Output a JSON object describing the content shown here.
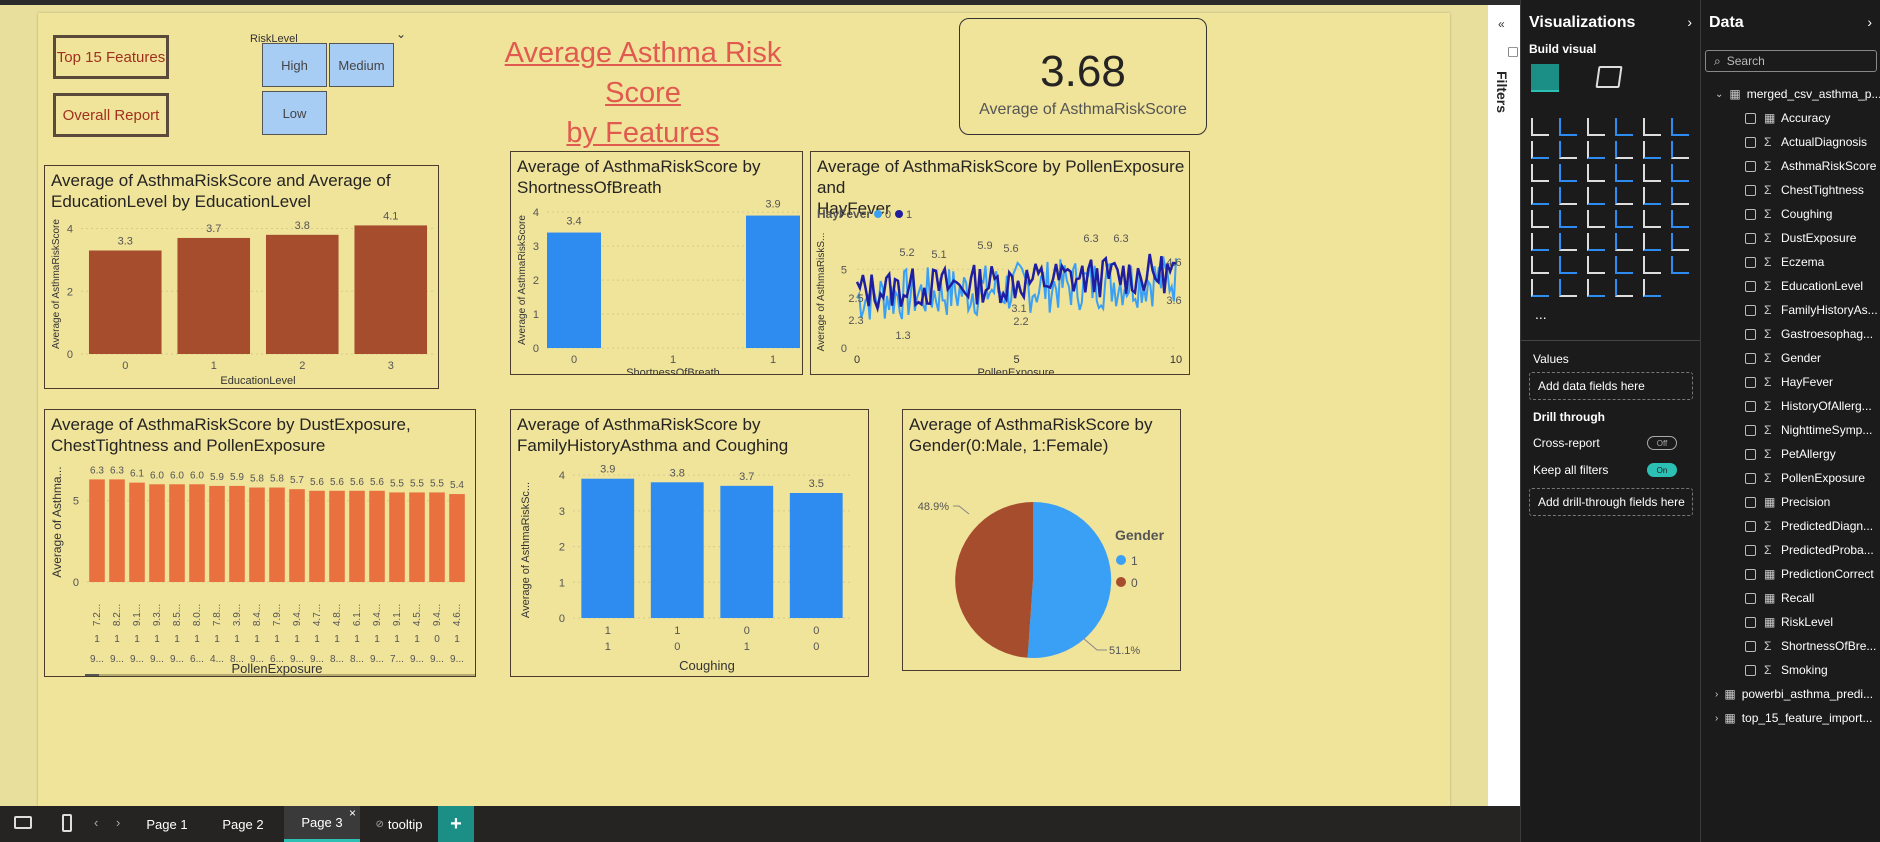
{
  "buttons": {
    "top15": "Top 15 Features",
    "overall": "Overall Report"
  },
  "slicer": {
    "title": "RiskLevel",
    "options": [
      "High",
      "Medium",
      "Low"
    ]
  },
  "page_title": {
    "line1": "Average Asthma Risk Score",
    "line2": "by Features"
  },
  "kpi": {
    "value": "3.68",
    "label": "Average of AsthmaRiskScore"
  },
  "colors": {
    "brown": "#a64d2e",
    "blue": "#2e8cf0",
    "orange": "#e8713f",
    "lightblue": "#3aa0f5",
    "darkblue": "#1f1ea0",
    "canvas": "#f0e39a"
  },
  "chart_data": [
    {
      "id": "edu",
      "type": "bar",
      "title": "Average of AsthmaRiskScore and Average of\nEducationLevel by EducationLevel",
      "xlabel": "EducationLevel",
      "ylabel": "Average of AsthmaRiskScore",
      "categories": [
        "0",
        "1",
        "2",
        "3"
      ],
      "values": [
        3.3,
        3.7,
        3.8,
        4.1
      ],
      "yticks": [
        "0",
        "2",
        "4"
      ],
      "ylim": [
        0,
        4.4
      ]
    },
    {
      "id": "sob",
      "type": "bar",
      "title": "Average of AsthmaRiskScore by\nShortnessOfBreath",
      "xlabel": "ShortnessOfBreath",
      "ylabel": "Average of AsthmaRiskScore",
      "x": [
        0,
        1
      ],
      "values": [
        3.4,
        3.9
      ],
      "xticks": [
        "0",
        "1",
        "1"
      ],
      "yticks": [
        "0",
        "1",
        "2",
        "3",
        "4"
      ],
      "ylim": [
        0,
        4.3
      ]
    },
    {
      "id": "pollen",
      "type": "line",
      "title": "Average of AsthmaRiskScore by PollenExposure and\nHayFever",
      "legend_title": "HayFever",
      "series": [
        {
          "name": "0"
        },
        {
          "name": "1"
        }
      ],
      "xlabel": "PollenExposure",
      "ylabel": "Average of AsthmaRiskS...",
      "xticks": [
        "0",
        "5",
        "10"
      ],
      "yticks": [
        "0",
        "5"
      ],
      "xlim": [
        0,
        10
      ],
      "ylim": [
        0,
        8
      ],
      "annotations": [
        "5.2",
        "5.1",
        "5.9",
        "5.6",
        "6.3",
        "6.3",
        "4.6",
        "3.6",
        "3.1",
        "2.2",
        "2.3",
        "1.3",
        "2.5"
      ]
    },
    {
      "id": "dust",
      "type": "bar",
      "title": "Average of AsthmaRiskScore by DustExposure,\nChestTightness and PollenExposure",
      "xlabel": "PollenExposure",
      "ylabel": "Average of Asthma...",
      "values": [
        6.3,
        6.3,
        6.1,
        6.0,
        6.0,
        6.0,
        5.9,
        5.9,
        5.8,
        5.8,
        5.7,
        5.6,
        5.6,
        5.6,
        5.6,
        5.5,
        5.5,
        5.5,
        5.4
      ],
      "labels": [
        "6.3",
        "6.3",
        "6.1",
        "6.0",
        "6.0",
        "6.0",
        "5.9",
        "5.9",
        "5.8",
        "5.8",
        "5.7",
        "5.6",
        "5.6",
        "5.6",
        "5.6",
        "5.5",
        "5.5",
        "5.5",
        "5.4"
      ],
      "xcat1": [
        "7.2...",
        "8.2...",
        "9.1...",
        "9.3...",
        "8.5...",
        "8.0...",
        "7.8...",
        "3.9...",
        "8.4...",
        "7.9...",
        "9.4...",
        "4.7...",
        "4.8...",
        "6.1...",
        "9.4...",
        "9.1...",
        "4.5...",
        "9.4...",
        "4.6..."
      ],
      "xcat2": [
        "1",
        "1",
        "1",
        "1",
        "1",
        "1",
        "1",
        "1",
        "1",
        "1",
        "1",
        "1",
        "1",
        "1",
        "1",
        "1",
        "1",
        "0",
        "1"
      ],
      "xcat3": [
        "9...",
        "9...",
        "9...",
        "9...",
        "9...",
        "6...",
        "4...",
        "8...",
        "9...",
        "6...",
        "9...",
        "9...",
        "8...",
        "8...",
        "9...",
        "7...",
        "9...",
        "9...",
        "9..."
      ],
      "yticks": [
        "0",
        "5"
      ],
      "ylim": [
        0,
        7
      ]
    },
    {
      "id": "fam",
      "type": "bar",
      "title": "Average of AsthmaRiskScore by\nFamilyHistoryAsthma and Coughing",
      "xlabel": "Coughing",
      "ylabel": "Average of AsthmaRiskSc...",
      "values": [
        3.9,
        3.8,
        3.7,
        3.5
      ],
      "labels": [
        "3.9",
        "3.8",
        "3.7",
        "3.5"
      ],
      "xcat1": [
        "1",
        "1",
        "0",
        "0"
      ],
      "xcat2": [
        "1",
        "0",
        "1",
        "0"
      ],
      "yticks": [
        "0",
        "1",
        "2",
        "3",
        "4"
      ],
      "ylim": [
        0,
        4.2
      ]
    },
    {
      "id": "gender",
      "type": "pie",
      "title": "Average of AsthmaRiskScore by\nGender(0:Male, 1:Female)",
      "legend_title": "Gender",
      "slices": [
        {
          "name": "1",
          "value": 51.1,
          "label": "51.1%"
        },
        {
          "name": "0",
          "value": 48.9,
          "label": "48.9%"
        }
      ]
    }
  ],
  "filters": {
    "label": "Filters"
  },
  "viz_pane": {
    "title": "Visualizations",
    "build": "Build visual",
    "values": "Values",
    "add_data": "Add data fields here",
    "drill": "Drill through",
    "cross": "Cross-report",
    "cross_state": "Off",
    "keep": "Keep all filters",
    "keep_state": "On",
    "add_drill": "Add drill-through fields here",
    "more": "..."
  },
  "data_pane": {
    "title": "Data",
    "search": "Search",
    "table": "merged_csv_asthma_p...",
    "fields": [
      "Accuracy",
      "ActualDiagnosis",
      "AsthmaRiskScore",
      "ChestTightness",
      "Coughing",
      "DustExposure",
      "Eczema",
      "EducationLevel",
      "FamilyHistoryAs...",
      "Gastroesophag...",
      "Gender",
      "HayFever",
      "HistoryOfAllerg...",
      "NighttimeSymp...",
      "PetAllergy",
      "PollenExposure",
      "Precision",
      "PredictedDiagn...",
      "PredictedProba...",
      "PredictionCorrect",
      "Recall",
      "RiskLevel",
      "ShortnessOfBre...",
      "Smoking"
    ],
    "field_icons": [
      "calc",
      "sum",
      "sum",
      "sum",
      "sum",
      "sum",
      "sum",
      "sum",
      "sum",
      "sum",
      "sum",
      "sum",
      "sum",
      "sum",
      "sum",
      "sum",
      "calc",
      "sum",
      "sum",
      "calc",
      "calc",
      "calc",
      "sum",
      "sum"
    ],
    "tables": [
      "powerbi_asthma_predi...",
      "top_15_feature_import..."
    ]
  },
  "tabs": [
    "Page 1",
    "Page 2",
    "Page 3",
    "tooltip"
  ],
  "tab_close": "×",
  "add_page": "+"
}
